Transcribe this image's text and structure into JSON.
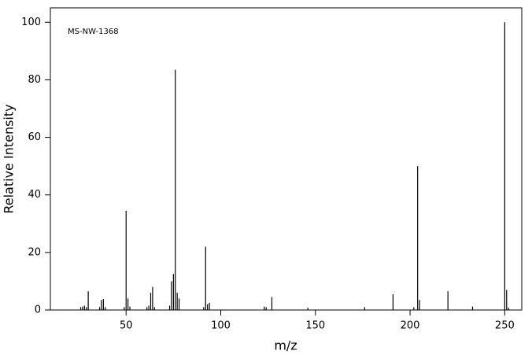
{
  "chart_data": {
    "type": "stem",
    "annotation": "MS-NW-1368",
    "x_label": "m/z",
    "y_label": "Relative Intensity",
    "color": "#000000",
    "x": [
      26,
      27,
      28,
      29,
      30,
      36,
      37,
      38,
      39,
      49,
      50,
      51,
      52,
      61,
      62,
      63,
      64,
      65,
      73,
      74,
      75,
      76,
      77,
      78,
      91,
      92,
      93,
      94,
      123,
      124,
      127,
      146,
      176,
      191,
      202,
      204,
      205,
      220,
      233,
      250,
      251,
      252
    ],
    "values": [
      1,
      1.2,
      1.5,
      1,
      6.5,
      1,
      3.5,
      3.8,
      1,
      1,
      34.5,
      4,
      1.2,
      1,
      1.5,
      6,
      8,
      1,
      1.5,
      10,
      12.5,
      83.5,
      6,
      4,
      1,
      22,
      2,
      2.5,
      1.2,
      1,
      4.5,
      0.8,
      1,
      5.5,
      1,
      50,
      3.5,
      6.5,
      1.2,
      100,
      7,
      0.8
    ],
    "xlim": [
      10,
      259
    ],
    "xticks": [
      50,
      100,
      150,
      200,
      250
    ],
    "ylim": [
      0,
      105
    ],
    "yticks": [
      0,
      20,
      40,
      60,
      80,
      100
    ]
  }
}
